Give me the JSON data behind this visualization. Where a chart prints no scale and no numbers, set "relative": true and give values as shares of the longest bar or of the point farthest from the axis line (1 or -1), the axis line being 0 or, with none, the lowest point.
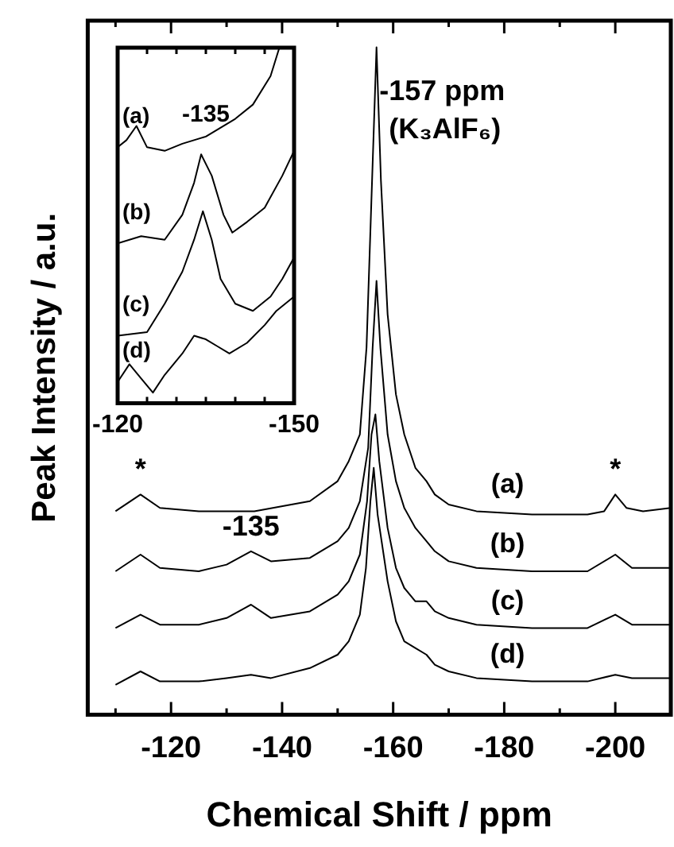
{
  "chart_data": [
    {
      "type": "line",
      "relative": true,
      "xlabel": "Chemical Shift / ppm",
      "ylabel": "Peak Intensity / a.u.",
      "xlim": [
        -105,
        -210
      ],
      "xticks": [
        {
          "value": -110,
          "label": null
        },
        -120,
        {
          "value": -130,
          "label": null
        },
        -140,
        {
          "value": -150,
          "label": null
        },
        -160,
        {
          "value": -170,
          "label": null
        },
        -180,
        {
          "value": -190,
          "label": null
        },
        -200
      ],
      "annotations": [
        "-157 ppm",
        "(K₃AlF₆)",
        {
          "text": "-135",
          "x": -134.4,
          "y": 0.245
        },
        {
          "text": "*",
          "x": -114.5,
          "y": 0.33
        },
        {
          "text": "*",
          "x": -200,
          "y": 0.33
        }
      ],
      "series": [
        {
          "name": "(a)",
          "color": "#000000",
          "x": [
            -110,
            -114.5,
            -118,
            -125,
            -135,
            -145,
            -150,
            -152,
            -154,
            -155.2,
            -156.2,
            -157,
            -157.8,
            -159,
            -160.5,
            -162,
            -164,
            -166,
            -167.5,
            -170,
            -175,
            -185,
            -195,
            -198,
            -200,
            -202,
            -205,
            -210
          ],
          "values": [
            0.305,
            0.33,
            0.31,
            0.305,
            0.305,
            0.32,
            0.35,
            0.38,
            0.42,
            0.55,
            0.8,
            1.0,
            0.8,
            0.6,
            0.48,
            0.42,
            0.37,
            0.35,
            0.33,
            0.315,
            0.305,
            0.3,
            0.3,
            0.305,
            0.33,
            0.31,
            0.305,
            0.31
          ]
        },
        {
          "name": "(b)",
          "color": "#000000",
          "x": [
            -110,
            -114.5,
            -118,
            -125,
            -130,
            -134.4,
            -138,
            -145,
            -150,
            -152,
            -154,
            -155.5,
            -156.3,
            -157,
            -157.7,
            -159,
            -160.5,
            -162,
            -164,
            -166,
            -167.5,
            -170,
            -175,
            -185,
            -195,
            -200,
            -203,
            -210
          ],
          "values": [
            0.215,
            0.24,
            0.22,
            0.215,
            0.225,
            0.245,
            0.23,
            0.235,
            0.26,
            0.28,
            0.32,
            0.4,
            0.55,
            0.65,
            0.55,
            0.42,
            0.35,
            0.31,
            0.28,
            0.26,
            0.245,
            0.23,
            0.22,
            0.215,
            0.215,
            0.24,
            0.22,
            0.22
          ]
        },
        {
          "name": "(c)",
          "color": "#000000",
          "x": [
            -110,
            -114.5,
            -118,
            -125,
            -130,
            -134.4,
            -138,
            -145,
            -150,
            -152,
            -154,
            -155.3,
            -156.1,
            -156.8,
            -157.5,
            -159,
            -160.5,
            -162,
            -164,
            -166,
            -167.5,
            -170,
            -175,
            -185,
            -195,
            -200,
            -203,
            -210
          ],
          "values": [
            0.13,
            0.15,
            0.135,
            0.135,
            0.145,
            0.165,
            0.145,
            0.155,
            0.18,
            0.2,
            0.24,
            0.32,
            0.42,
            0.45,
            0.38,
            0.28,
            0.22,
            0.19,
            0.17,
            0.17,
            0.155,
            0.145,
            0.135,
            0.13,
            0.13,
            0.15,
            0.135,
            0.135
          ]
        },
        {
          "name": "(d)",
          "color": "#000000",
          "x": [
            -110,
            -114.5,
            -118,
            -125,
            -130,
            -134.4,
            -138,
            -145,
            -150,
            -152,
            -154,
            -155.1,
            -155.9,
            -156.5,
            -157.2,
            -159,
            -160.5,
            -162,
            -164,
            -166,
            -167.5,
            -170,
            -175,
            -185,
            -195,
            -200,
            -203,
            -210
          ],
          "values": [
            0.045,
            0.065,
            0.05,
            0.05,
            0.055,
            0.06,
            0.055,
            0.07,
            0.09,
            0.11,
            0.15,
            0.22,
            0.32,
            0.37,
            0.3,
            0.2,
            0.14,
            0.11,
            0.1,
            0.09,
            0.075,
            0.065,
            0.055,
            0.05,
            0.05,
            0.06,
            0.055,
            0.055
          ]
        }
      ]
    },
    {
      "type": "line",
      "relative": true,
      "tick_labels": "x",
      "xlim": [
        -120,
        -150
      ],
      "xticks": [
        -120,
        {
          "value": -125,
          "label": null
        },
        {
          "value": -130,
          "label": null
        },
        {
          "value": -135,
          "label": null
        },
        {
          "value": -140,
          "label": null
        },
        {
          "value": -145,
          "label": null
        },
        -150
      ],
      "annotations": [
        {
          "text": "-135",
          "x": -135,
          "y": 0.75
        }
      ],
      "series": [
        {
          "name": "(a)",
          "color": "#000000",
          "x": [
            -120,
            -121.5,
            -123.2,
            -125,
            -128,
            -131,
            -135,
            -140,
            -143,
            -146,
            -147.5
          ],
          "values": [
            0.72,
            0.74,
            0.78,
            0.72,
            0.71,
            0.73,
            0.75,
            0.8,
            0.84,
            0.92,
            1.0
          ]
        },
        {
          "name": "(b)",
          "color": "#000000",
          "x": [
            -120,
            -124,
            -128,
            -131,
            -133,
            -134.2,
            -136,
            -138,
            -139.5,
            -142,
            -145,
            -148,
            -150
          ],
          "values": [
            0.45,
            0.47,
            0.46,
            0.53,
            0.62,
            0.7,
            0.64,
            0.53,
            0.48,
            0.51,
            0.55,
            0.64,
            0.71
          ]
        },
        {
          "name": "(c)",
          "color": "#000000",
          "x": [
            -120,
            -125,
            -128,
            -131,
            -133,
            -134.5,
            -136,
            -137.5,
            -140,
            -143,
            -146,
            -148,
            -150
          ],
          "values": [
            0.19,
            0.2,
            0.28,
            0.37,
            0.46,
            0.54,
            0.46,
            0.35,
            0.28,
            0.26,
            0.3,
            0.35,
            0.41
          ]
        },
        {
          "name": "(d)",
          "color": "#000000",
          "x": [
            -120,
            -122,
            -124,
            -126,
            -128,
            -131,
            -133,
            -135,
            -137,
            -139,
            -142,
            -145,
            -147,
            -150
          ],
          "values": [
            0.06,
            0.11,
            0.07,
            0.03,
            0.08,
            0.14,
            0.19,
            0.18,
            0.16,
            0.14,
            0.17,
            0.22,
            0.26,
            0.3
          ]
        }
      ]
    }
  ]
}
